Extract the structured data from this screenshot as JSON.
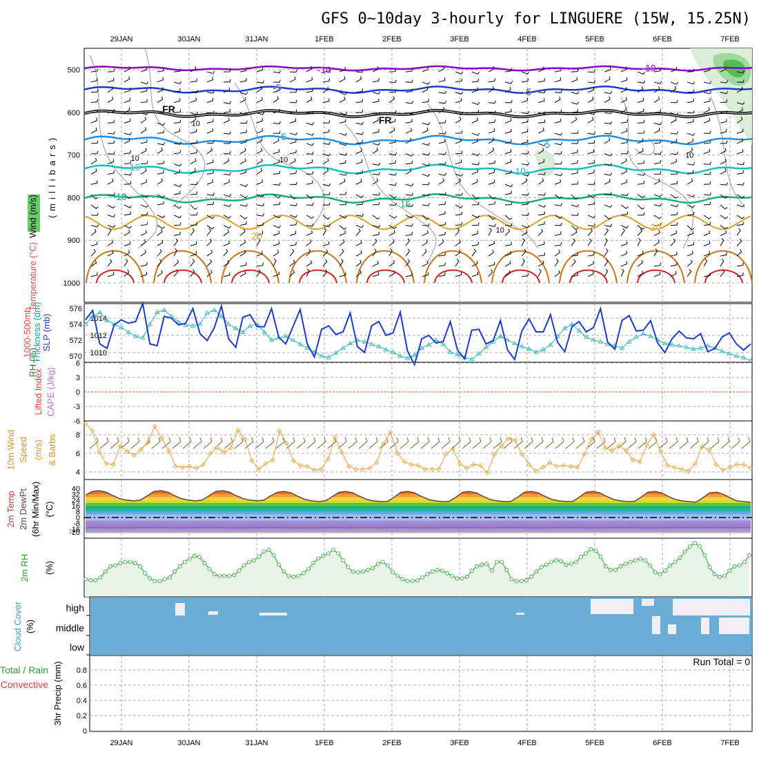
{
  "title": "GFS 0~10day 3-hourly for LINGUERE (15W, 15.25N)",
  "dates": [
    "29JAN",
    "30JAN",
    "31JAN",
    "1FEB",
    "2FEB",
    "3FEB",
    "4FEB",
    "5FEB",
    "6FEB",
    "7FEB"
  ],
  "colors": {
    "grid": "#aaaaaa",
    "temp_purple": "#8a00c8",
    "temp_blue": "#1a3ad0",
    "temp_lightblue": "#1e8ee6",
    "temp_cyan": "#10c0c0",
    "temp_green": "#10b080",
    "temp_orange": "#e0a020",
    "temp_darkorange": "#d07010",
    "temp_red": "#d02020",
    "rh": "#40c040",
    "cloud": "#6aaed6",
    "slp": "#1a3ad0",
    "thickness": "#20b8b8",
    "wind10": "#f0a030",
    "lifted": "#e04040",
    "cape": "#c070d0",
    "rh2m": "#22aa22"
  },
  "chart_data": [
    {
      "type": "line",
      "panel": "upper-air",
      "ylabel_parts": [
        "RH (%)",
        "Temperature (°C)",
        "Wind (m/s)",
        "(millibars)"
      ],
      "y_ticks": [
        500,
        600,
        700,
        800,
        900,
        1000
      ],
      "y_inverted": true,
      "isotherm_labels": [
        {
          "value": "-10",
          "date_index": 3.0,
          "level": 500
        },
        {
          "value": "-10",
          "date_index": 7.8,
          "level": 496
        },
        {
          "value": "-5",
          "date_index": 2.3,
          "level": 542
        },
        {
          "value": "-5",
          "date_index": 6.0,
          "level": 552
        },
        {
          "value": "FR",
          "date_index": 0.7,
          "level": 592
        },
        {
          "value": "FR",
          "date_index": 3.9,
          "level": 618
        },
        {
          "value": "5",
          "date_index": 2.4,
          "level": 657
        },
        {
          "value": "5",
          "date_index": 6.3,
          "level": 675
        },
        {
          "value": "10",
          "date_index": 0.2,
          "level": 728
        },
        {
          "value": "10",
          "date_index": 5.9,
          "level": 738
        },
        {
          "value": "15",
          "date_index": 0.0,
          "level": 798
        },
        {
          "value": "15",
          "date_index": 4.2,
          "level": 815
        },
        {
          "value": "20",
          "date_index": 2.0,
          "level": 890
        },
        {
          "value": "20",
          "date_index": 7.9,
          "level": 870
        }
      ],
      "rh_labels": [
        {
          "value": "10",
          "date_index": 1.1,
          "level": 625
        },
        {
          "value": "10",
          "date_index": 0.2,
          "level": 707
        },
        {
          "value": "10",
          "date_index": 2.4,
          "level": 710
        },
        {
          "value": "10",
          "date_index": 8.4,
          "level": 700
        },
        {
          "value": "10",
          "date_index": 5.6,
          "level": 875
        }
      ]
    },
    {
      "type": "line",
      "panel": "slp-thickness",
      "ylabel_parts": [
        "1000-500mb",
        "Thickness (dm)",
        "SLP (mb)"
      ],
      "left_ticks": [
        570,
        572,
        574,
        576
      ],
      "right_ticks": [
        1010,
        1012,
        1014
      ],
      "series": [
        {
          "name": "SLP (mb)",
          "values": [
            1013.8,
            1014.9,
            1011.0,
            1010.5,
            1013.2,
            1013.8,
            1013.4,
            1013.6,
            1015.7,
            1011.0,
            1010.8,
            1014.2,
            1014.0,
            1013.2,
            1013.4,
            1015.1,
            1012.2,
            1011.4,
            1012.9,
            1015.4,
            1011.6,
            1010.6,
            1014.1,
            1014.4,
            1013.0,
            1013.0,
            1015.1,
            1011.8,
            1011.0,
            1013.0,
            1015.0,
            1011.0,
            1009.5,
            1012.7,
            1013.1,
            1012.1,
            1012.4,
            1014.6,
            1010.7,
            1010.0,
            1013.1,
            1013.6,
            1012.0,
            1012.3,
            1014.7,
            1010.2,
            1008.6,
            1011.6,
            1012.0,
            1011.1,
            1011.3,
            1013.6,
            1010.3,
            1009.3,
            1012.6,
            1012.7,
            1011.0,
            1011.4,
            1013.7,
            1010.3,
            1009.2,
            1012.5,
            1013.9,
            1012.4,
            1012.4,
            1014.4,
            1011.2,
            1010.1,
            1013.0,
            1013.6,
            1012.4,
            1012.9,
            1015.1,
            1011.2,
            1010.4,
            1013.7,
            1014.3,
            1012.5,
            1012.6,
            1013.7,
            1011.1,
            1010.0,
            1011.6,
            1012.5,
            1011.7,
            1011.6,
            1012.2,
            1010.1,
            1010.5,
            1011.8,
            1012.3,
            1011.0,
            1010.3,
            1011.0
          ]
        },
        {
          "name": "1000-500mb Thickness (dm)",
          "values": [
            574.0,
            575.0,
            575.5,
            574.5,
            574.0,
            573.6,
            573.0,
            572.5,
            572.3,
            574.0,
            575.5,
            575.8,
            575.0,
            574.3,
            573.9,
            573.8,
            574.0,
            575.4,
            575.8,
            575.0,
            574.0,
            573.5,
            573.0,
            573.8,
            574.0,
            573.0,
            572.0,
            572.3,
            572.5,
            572.0,
            571.5,
            571.0,
            570.5,
            570.0,
            569.8,
            570.4,
            571.0,
            571.6,
            572.0,
            571.8,
            571.5,
            571.2,
            570.8,
            570.5,
            570.0,
            569.7,
            570.1,
            571.0,
            571.4,
            572.0,
            571.5,
            570.5,
            570.2,
            569.8,
            569.6,
            570.3,
            571.1,
            571.8,
            572.5,
            572.0,
            571.6,
            571.2,
            570.9,
            570.5,
            570.8,
            571.4,
            572.5,
            573.5,
            574.0,
            573.2,
            572.4,
            572.0,
            571.8,
            571.5,
            571.3,
            571.0,
            571.8,
            572.4,
            572.8,
            572.5,
            572.0,
            571.6,
            571.4,
            571.3,
            571.1,
            570.9,
            571.0,
            571.3,
            571.0,
            570.6,
            570.3,
            570.0,
            569.8,
            569.4
          ]
        }
      ]
    },
    {
      "type": "line",
      "panel": "lifted-cape",
      "ylabel_parts": [
        "Lifted Index",
        "CAPE (J/kg)"
      ],
      "y_ticks": [
        "-6",
        "-3",
        "0",
        "3",
        "6"
      ],
      "series": []
    },
    {
      "type": "line",
      "panel": "wind10m",
      "ylabel_parts": [
        "10m Wind",
        "Speed",
        "(m/s)",
        "& Barbs"
      ],
      "y_ticks": [
        4,
        6,
        8
      ],
      "ylim": [
        3.5,
        9.5
      ],
      "series": [
        {
          "name": "10m Wind Speed",
          "values": [
            9.2,
            8.4,
            6.1,
            4.9,
            4.8,
            6.8,
            6.2,
            5.8,
            6.4,
            7.2,
            8.9,
            7.6,
            6.3,
            4.6,
            4.5,
            4.6,
            4.4,
            4.8,
            6.0,
            6.6,
            6.1,
            6.6,
            8.5,
            7.5,
            5.2,
            4.3,
            4.9,
            5.3,
            8.4,
            7.1,
            5.2,
            4.7,
            4.6,
            4.2,
            4.3,
            5.4,
            7.7,
            6.1,
            4.6,
            4.3,
            4.3,
            4.4,
            5.0,
            7.0,
            8.3,
            6.0,
            5.1,
            4.8,
            4.7,
            4.3,
            4.3,
            4.3,
            5.9,
            6.5,
            4.9,
            4.4,
            4.8,
            4.7,
            3.9,
            5.9,
            6.8,
            7.6,
            7.4,
            5.9,
            4.8,
            4.1,
            4.5,
            5.0,
            4.6,
            4.7,
            4.6,
            4.5,
            5.9,
            7.5,
            8.3,
            6.6,
            6.3,
            6.8,
            6.3,
            5.3,
            5.1,
            6.9,
            8.0,
            6.2,
            4.7,
            4.5,
            4.3,
            4.1,
            4.9,
            6.7,
            6.4,
            4.8,
            4.2,
            4.5,
            4.8,
            4.8,
            4.4
          ]
        }
      ]
    },
    {
      "type": "area",
      "panel": "temp2m",
      "ylabel_parts": [
        "2m Temp",
        "2m DewPt",
        "(6hr Min/Max)",
        "(°C)"
      ],
      "y_ticks": [
        "40",
        "32",
        "24",
        "16",
        "8",
        "0",
        "-8",
        "-16",
        "-20"
      ],
      "ylim": [
        -22,
        41
      ],
      "series": [
        {
          "name": "2m Temp",
          "values": [
            31,
            36,
            37,
            35,
            30,
            26,
            24,
            23,
            24,
            30,
            36,
            37,
            35,
            30,
            26,
            24,
            23,
            24,
            30,
            36,
            37,
            35,
            30,
            26,
            24,
            23,
            24,
            30,
            35,
            36,
            34,
            29,
            25,
            23,
            22,
            23,
            29,
            35,
            36,
            34,
            29,
            25,
            23,
            22,
            22,
            28,
            35,
            36,
            34,
            29,
            25,
            23,
            22,
            22,
            28,
            35,
            36,
            34,
            29,
            25,
            23,
            22,
            22,
            28,
            35,
            36,
            34,
            29,
            25,
            23,
            22,
            22,
            28,
            35,
            36,
            34,
            29,
            25,
            23,
            22,
            22,
            28,
            35,
            36,
            34,
            29,
            25,
            23,
            22,
            21,
            27,
            34,
            35,
            32,
            27,
            23,
            22,
            21
          ]
        },
        {
          "name": "2m DewPt",
          "values": [
            -7,
            -8,
            -9,
            -10,
            -10,
            -11,
            -10,
            -9,
            -8,
            -7,
            -7,
            -8,
            -9,
            -10,
            -10,
            -9,
            -8,
            -7,
            -7,
            -8,
            -9,
            -10,
            -10,
            -10,
            -9,
            -8,
            -7,
            -7,
            -8,
            -10,
            -12,
            -13,
            -12,
            -10,
            -8,
            -7,
            -7,
            -9,
            -12,
            -14,
            -15,
            -14,
            -12,
            -9,
            -7,
            -7,
            -8,
            -10,
            -12,
            -12,
            -10,
            -9,
            -8,
            -7,
            -7,
            -8,
            -9,
            -10,
            -9,
            -8,
            -7,
            -7,
            -8,
            -9,
            -10,
            -10,
            -9,
            -8,
            -7,
            -7,
            -8,
            -9,
            -10,
            -10,
            -9,
            -8,
            -7,
            -7,
            -8,
            -9,
            -10,
            -10,
            -9,
            -8,
            -7,
            -7,
            -8,
            -9,
            -9,
            -8,
            -7,
            -7,
            -8,
            -9,
            -9,
            -8
          ]
        }
      ]
    },
    {
      "type": "line",
      "panel": "rh2m",
      "ylabel_parts": [
        "2m RH",
        "(%)"
      ],
      "ylim": [
        0,
        100
      ],
      "series": [
        {
          "name": "2m RH",
          "values": [
            18,
            17,
            17,
            20,
            27,
            33,
            34,
            37,
            38,
            38,
            37,
            33,
            25,
            19,
            16,
            16,
            18,
            20,
            27,
            33,
            38,
            42,
            45,
            44,
            37,
            30,
            24,
            22,
            22,
            22,
            23,
            28,
            34,
            38,
            40,
            44,
            50,
            52,
            46,
            35,
            27,
            22,
            21,
            22,
            25,
            30,
            37,
            42,
            45,
            48,
            52,
            48,
            40,
            32,
            27,
            26,
            27,
            29,
            31,
            36,
            38,
            34,
            26,
            22,
            18,
            16,
            16,
            17,
            20,
            24,
            27,
            29,
            28,
            25,
            22,
            19,
            19,
            21,
            28,
            33,
            35,
            36,
            28,
            38,
            38,
            29,
            18,
            16,
            16,
            17,
            21,
            27,
            32,
            35,
            38,
            40,
            39,
            35,
            36,
            38,
            44,
            48,
            53,
            51,
            44,
            33,
            29,
            29,
            33,
            36,
            38,
            40,
            42,
            40,
            34,
            26,
            24,
            28,
            34,
            38,
            43,
            50,
            56,
            60,
            56,
            46,
            32,
            24,
            21,
            22,
            28,
            33,
            34,
            38,
            46
          ]
        }
      ]
    },
    {
      "type": "heatmap",
      "panel": "cloud",
      "ylabel_parts": [
        "Cloud Cover",
        "(%)"
      ],
      "row_labels": [
        "high",
        "middle",
        "low"
      ]
    },
    {
      "type": "line",
      "panel": "precip",
      "ylabel_parts": [
        "Total / Rain",
        "Convective",
        "3hr Precip (mm)"
      ],
      "y_ticks": [
        "0",
        "0.2",
        "0.4",
        "0.6",
        "0.8"
      ],
      "run_total": "Run Total = 0",
      "series": []
    }
  ]
}
